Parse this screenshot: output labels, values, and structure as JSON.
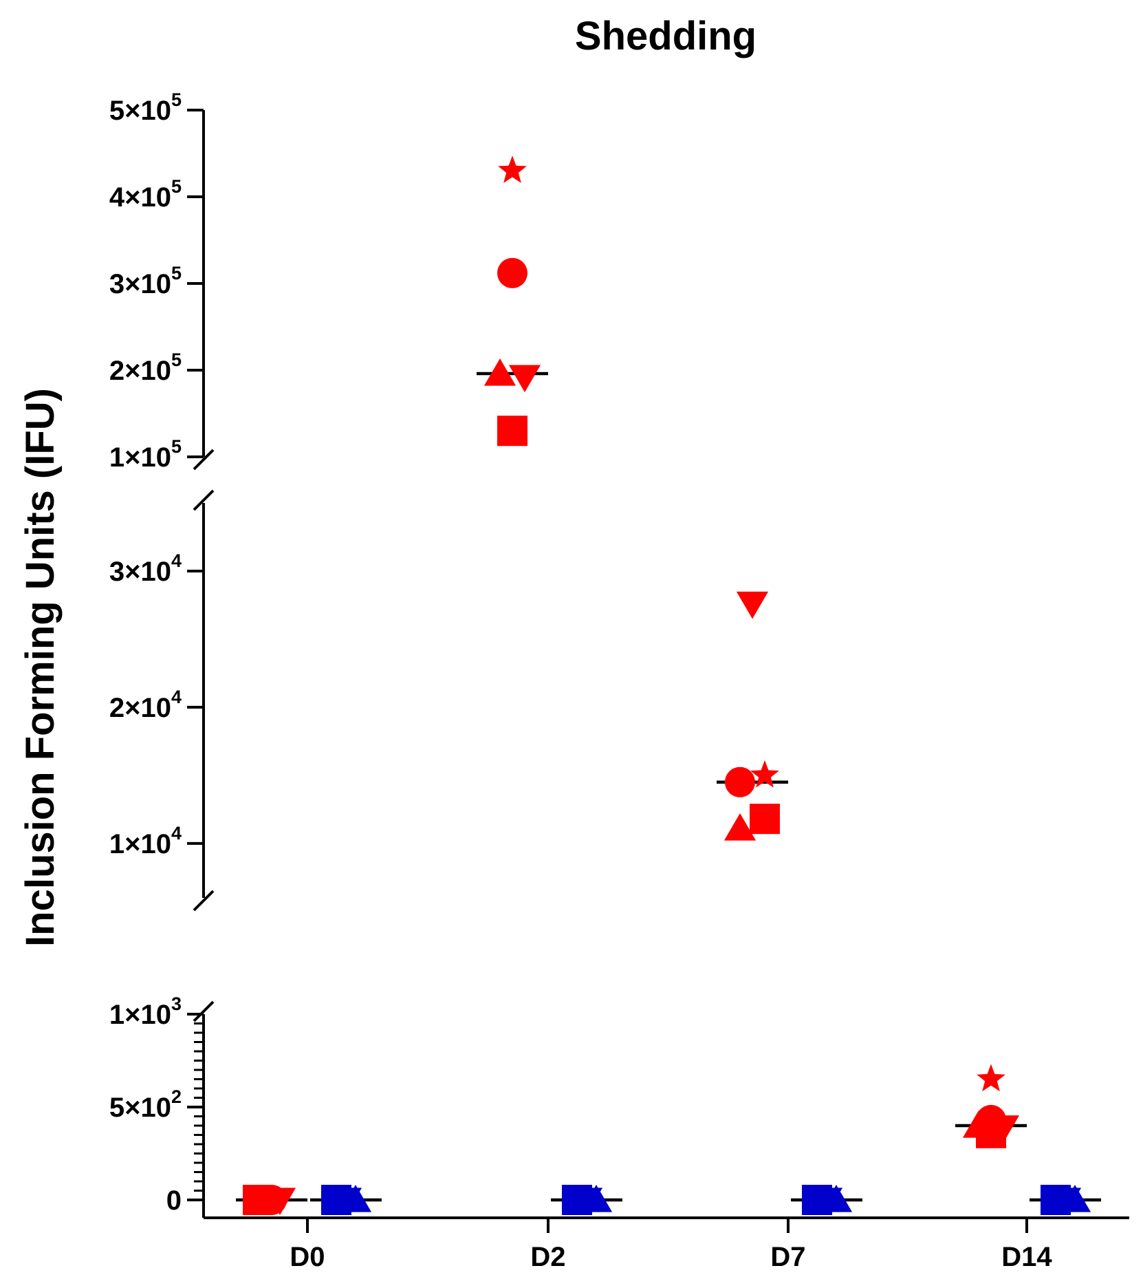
{
  "chart_data": {
    "type": "scatter",
    "title": "Shedding",
    "xlabel": "",
    "ylabel": "Inclusion Forming Units (IFU)",
    "categories": [
      "D0",
      "D2",
      "D7",
      "D14"
    ],
    "y_scale": "broken-linear",
    "y_segments": [
      {
        "range": [
          0,
          1000
        ],
        "ticks": [
          0,
          500,
          1000
        ],
        "tick_labels": [
          [
            "0",
            ""
          ],
          [
            "5×10",
            "2"
          ],
          [
            "1×10",
            "3"
          ]
        ]
      },
      {
        "range": [
          6000,
          35000
        ],
        "ticks": [
          10000,
          20000,
          30000
        ],
        "tick_labels": [
          [
            "1×10",
            "4"
          ],
          [
            "2×10",
            "4"
          ],
          [
            "3×10",
            "4"
          ]
        ]
      },
      {
        "range": [
          100000,
          500000
        ],
        "ticks": [
          100000,
          200000,
          300000,
          400000,
          500000
        ],
        "tick_labels": [
          [
            "1×10",
            "5"
          ],
          [
            "2×10",
            "5"
          ],
          [
            "3×10",
            "5"
          ],
          [
            "4×10",
            "5"
          ],
          [
            "5×10",
            "5"
          ]
        ]
      }
    ],
    "colors": {
      "red_group": "#ff0000",
      "blue_group": "#0000cc",
      "median": "#000000"
    },
    "series": [
      {
        "color_key": "red_group",
        "points": [
          {
            "category": "D0",
            "marker": "square",
            "y": 0
          },
          {
            "category": "D0",
            "marker": "triangle-up",
            "y": 0
          },
          {
            "category": "D0",
            "marker": "triangle-down",
            "y": 0
          },
          {
            "category": "D0",
            "marker": "circle",
            "y": 0
          },
          {
            "category": "D0",
            "marker": "star",
            "y": 0
          },
          {
            "category": "D2",
            "marker": "star",
            "y": 430000
          },
          {
            "category": "D2",
            "marker": "circle",
            "y": 312000
          },
          {
            "category": "D2",
            "marker": "triangle-up",
            "y": 196000
          },
          {
            "category": "D2",
            "marker": "triangle-down",
            "y": 192000
          },
          {
            "category": "D2",
            "marker": "square",
            "y": 130000
          },
          {
            "category": "D7",
            "marker": "triangle-down",
            "y": 27600
          },
          {
            "category": "D7",
            "marker": "star",
            "y": 15000
          },
          {
            "category": "D7",
            "marker": "circle",
            "y": 14500
          },
          {
            "category": "D7",
            "marker": "square",
            "y": 11800
          },
          {
            "category": "D7",
            "marker": "triangle-up",
            "y": 11100
          },
          {
            "category": "D14",
            "marker": "star",
            "y": 650
          },
          {
            "category": "D14",
            "marker": "circle",
            "y": 430
          },
          {
            "category": "D14",
            "marker": "triangle-up",
            "y": 400
          },
          {
            "category": "D14",
            "marker": "triangle-down",
            "y": 390
          },
          {
            "category": "D14",
            "marker": "square",
            "y": 360
          }
        ],
        "medians": [
          {
            "category": "D0",
            "y": 0
          },
          {
            "category": "D2",
            "y": 196000
          },
          {
            "category": "D7",
            "y": 14500
          },
          {
            "category": "D14",
            "y": 400
          }
        ]
      },
      {
        "color_key": "blue_group",
        "points": [
          {
            "category": "D0",
            "marker": "square",
            "y": 0
          },
          {
            "category": "D0",
            "marker": "triangle-down",
            "y": 0
          },
          {
            "category": "D0",
            "marker": "triangle-up",
            "y": 0
          },
          {
            "category": "D2",
            "marker": "square",
            "y": 0
          },
          {
            "category": "D2",
            "marker": "triangle-down",
            "y": 0
          },
          {
            "category": "D2",
            "marker": "triangle-up",
            "y": 0
          },
          {
            "category": "D7",
            "marker": "square",
            "y": 0
          },
          {
            "category": "D7",
            "marker": "triangle-down",
            "y": 0
          },
          {
            "category": "D7",
            "marker": "triangle-up",
            "y": 0
          },
          {
            "category": "D14",
            "marker": "square",
            "y": 0
          },
          {
            "category": "D14",
            "marker": "triangle-down",
            "y": 0
          },
          {
            "category": "D14",
            "marker": "triangle-up",
            "y": 0
          }
        ],
        "medians": [
          {
            "category": "D0",
            "y": 0
          },
          {
            "category": "D2",
            "y": 0
          },
          {
            "category": "D7",
            "y": 0
          },
          {
            "category": "D14",
            "y": 0
          }
        ]
      }
    ],
    "grid": false,
    "legend": "none"
  }
}
